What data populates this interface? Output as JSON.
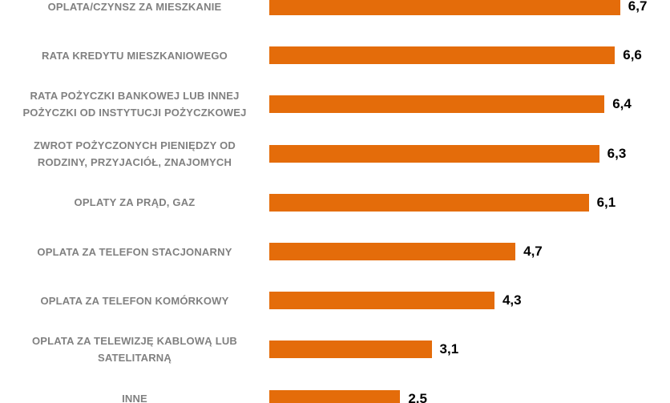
{
  "chart_data": {
    "type": "bar",
    "orientation": "horizontal",
    "categories": [
      "OPLATA/CZYNSZ ZA MIESZKANIE",
      "RATA KREDYTU MIESZKANIOWEGO",
      "RATA POŻYCZKI BANKOWEJ LUB INNEJ\nPOŻYCZKI OD INSTYTUCJI POŻYCZKOWEJ",
      "ZWROT POŻYCZONYCH PIENIĘDZY OD\nRODZINY, PRZYJACIÓŁ, ZNAJOMYCH",
      "OPLATY ZA PRĄD, GAZ",
      "OPLATA ZA TELEFON STACJONARNY",
      "OPLATA ZA TELEFON KOMÓRKOWY",
      "OPLATA ZA TELEWIZJĘ KABLOWĄ LUB\nSATELITARNĄ",
      "INNE"
    ],
    "values": [
      6.7,
      6.6,
      6.4,
      6.3,
      6.1,
      4.7,
      4.3,
      3.1,
      2.5
    ],
    "value_labels": [
      "6,7",
      "6,6",
      "6,4",
      "6,3",
      "6,1",
      "4,7",
      "4,3",
      "3,1",
      "2,5"
    ],
    "bar_color": "#E46C0A",
    "xlim": [
      0,
      7.3
    ],
    "grid": false,
    "legend": "none"
  }
}
